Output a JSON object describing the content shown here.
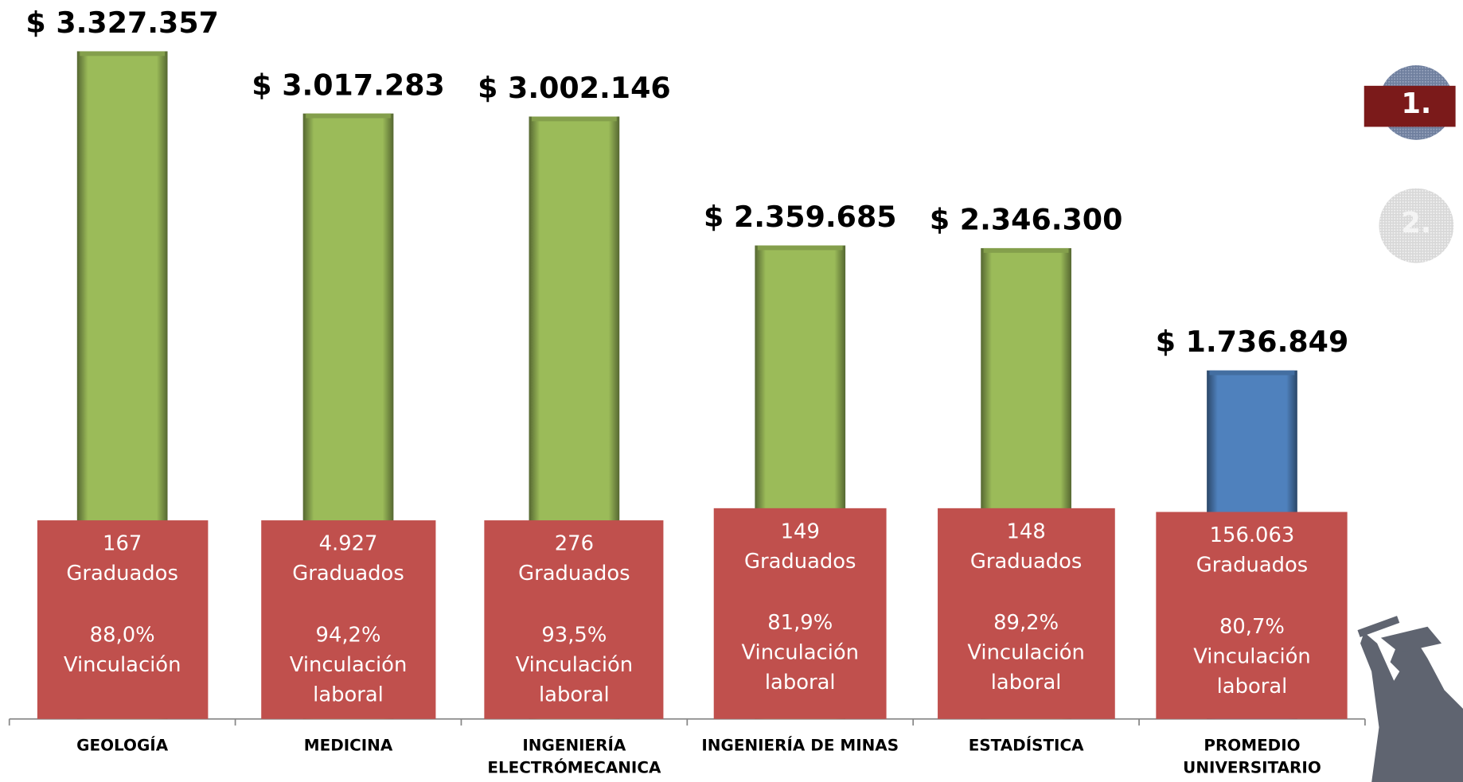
{
  "chart_data": {
    "type": "bar",
    "categories": [
      "GEOLOGÍA",
      "MEDICINA",
      "INGENIERÍA ELECTRÓMECANICA",
      "INGENIERÍA DE MINAS",
      "ESTADÍSTICA",
      "PROMEDIO UNIVERSITARIO"
    ],
    "values": [
      3327357,
      3017283,
      3002146,
      2359685,
      2346300,
      1736849
    ],
    "value_labels": [
      "$ 3.327.357",
      "$ 3.017.283",
      "$ 3.002.146",
      "$ 2.359.685",
      "$ 2.346.300",
      "$ 1.736.849"
    ],
    "colors": [
      "#9bbb59",
      "#9bbb59",
      "#9bbb59",
      "#9bbb59",
      "#9bbb59",
      "#4f81bd"
    ],
    "boxes": [
      {
        "graduates": "167",
        "graduates_label": "Graduados",
        "employment": "88,0%",
        "employment_label": "Vinculación"
      },
      {
        "graduates": "4.927",
        "graduates_label": "Graduados",
        "employment": "94,2%",
        "employment_label": "Vinculación laboral"
      },
      {
        "graduates": "276",
        "graduates_label": "Graduados",
        "employment": "93,5%",
        "employment_label": "Vinculación laboral"
      },
      {
        "graduates": "149",
        "graduates_label": "Graduados",
        "employment": "81,9%",
        "employment_label": "Vinculación laboral"
      },
      {
        "graduates": "148",
        "graduates_label": "Graduados",
        "employment": "89,2%",
        "employment_label": "Vinculación laboral"
      },
      {
        "graduates": "156.063",
        "graduates_label": "Graduados",
        "employment": "80,7%",
        "employment_label": "Vinculación laboral"
      }
    ]
  },
  "nav": [
    "1.",
    "2."
  ]
}
